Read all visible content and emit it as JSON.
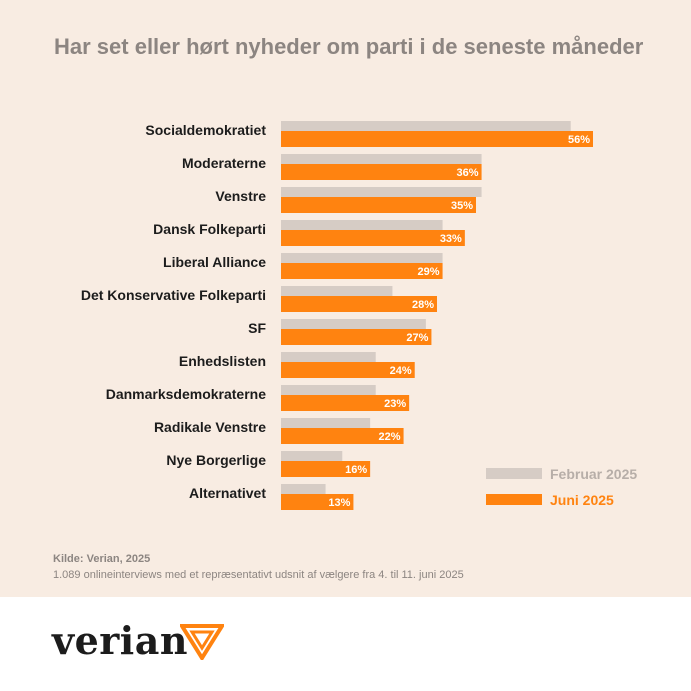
{
  "chart_data": {
    "type": "bar",
    "orientation": "horizontal",
    "title": "Har set eller hørt nyheder om parti i de seneste måneder",
    "categories": [
      "Socialdemokratiet",
      "Moderaterne",
      "Venstre",
      "Dansk Folkeparti",
      "Liberal Alliance",
      "Det Konservative Folkeparti",
      "SF",
      "Enhedslisten",
      "Danmarksdemokraterne",
      "Radikale Venstre",
      "Nye Borgerlige",
      "Alternativet"
    ],
    "series": [
      {
        "name": "Februar 2025",
        "color": "#d6ccc5",
        "values": [
          52,
          36,
          36,
          29,
          29,
          20,
          26,
          17,
          17,
          16,
          11,
          8
        ]
      },
      {
        "name": "Juni 2025",
        "color": "#ff8310",
        "values": [
          56,
          36,
          35,
          33,
          29,
          28,
          27,
          24,
          23,
          22,
          16,
          13
        ],
        "labels": [
          "56%",
          "36%",
          "35%",
          "33%",
          "29%",
          "28%",
          "27%",
          "24%",
          "23%",
          "22%",
          "16%",
          "13%"
        ]
      }
    ],
    "xlim": [
      0,
      60
    ],
    "legend": "bottom-right"
  },
  "footer": {
    "source": "Kilde: Verian, 2025",
    "note": "1.089 onlineinterviews med et repræsentativt udsnit af vælgere fra 4. til 11. juni 2025"
  },
  "brand": {
    "name": "verian"
  }
}
